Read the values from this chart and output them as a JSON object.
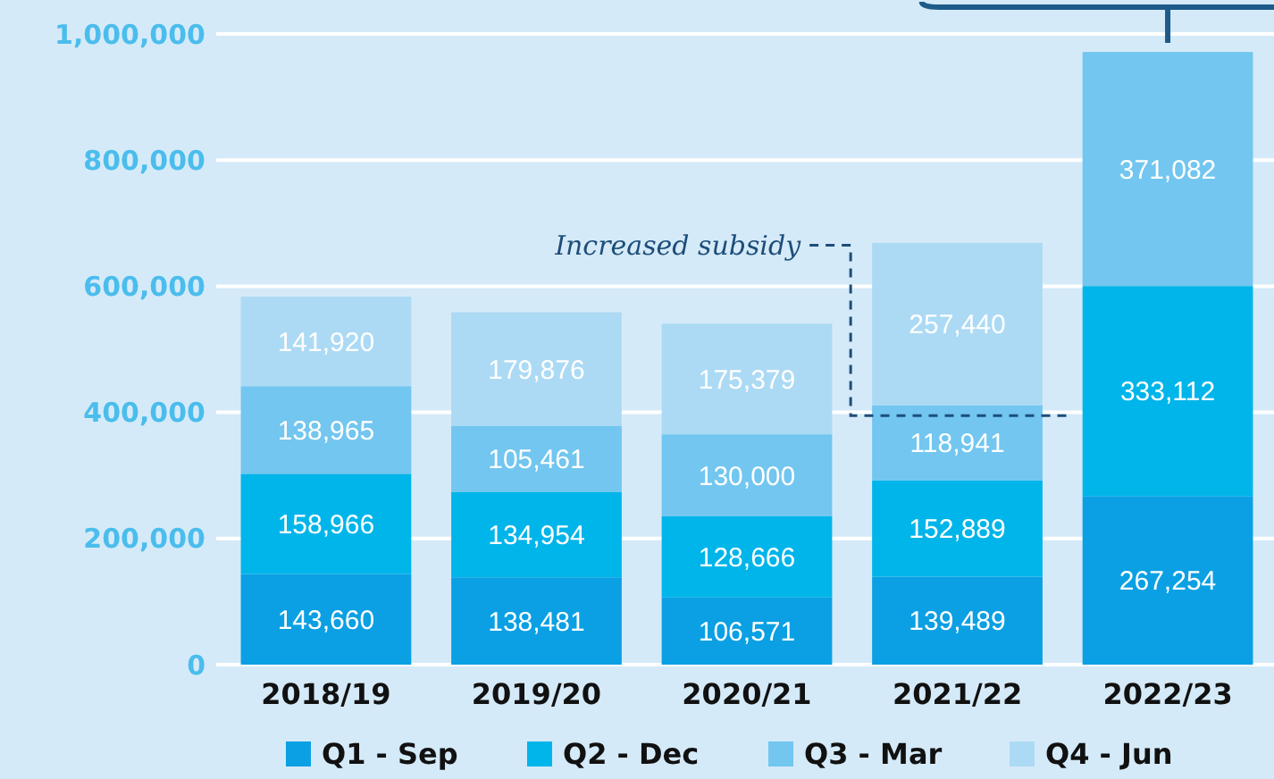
{
  "chart_data": {
    "type": "bar",
    "stacked": true,
    "categories": [
      "2018/19",
      "2019/20",
      "2020/21",
      "2021/22",
      "2022/23"
    ],
    "series": [
      {
        "name": "Q1 - Sep",
        "color": "#0ba0e3",
        "values": [
          143660,
          138481,
          106571,
          139489,
          267254
        ],
        "value_labels": [
          "143,660",
          "138,481",
          "106,571",
          "139,489",
          "267,254"
        ]
      },
      {
        "name": "Q2 - Dec",
        "color": "#00b5ea",
        "values": [
          158966,
          134954,
          128666,
          152889,
          333112
        ],
        "value_labels": [
          "158,966",
          "134,954",
          "128,666",
          "152,889",
          "333,112"
        ]
      },
      {
        "name": "Q3 - Mar",
        "color": "#72c6ef",
        "values": [
          138965,
          105461,
          130000,
          118941,
          371082
        ],
        "value_labels": [
          "138,965",
          "105,461",
          "130,000",
          "118,941",
          "371,082"
        ]
      },
      {
        "name": "Q4 - Jun",
        "color": "#acdaf4",
        "values": [
          141920,
          179876,
          175379,
          257440,
          null
        ],
        "value_labels": [
          "141,920",
          "179,876",
          "175,379",
          "257,440",
          null
        ]
      }
    ],
    "ylim": [
      0,
      1000000
    ],
    "yticks": [
      {
        "value": 0,
        "label": "0"
      },
      {
        "value": 200000,
        "label": "200,000"
      },
      {
        "value": 400000,
        "label": "400,000"
      },
      {
        "value": 600000,
        "label": "600,000"
      },
      {
        "value": 800000,
        "label": "800,000"
      },
      {
        "value": 1000000,
        "label": "1,000,000"
      }
    ],
    "grid": "y",
    "legend": "bottom",
    "annotations": [
      "Increased subsidy"
    ]
  }
}
